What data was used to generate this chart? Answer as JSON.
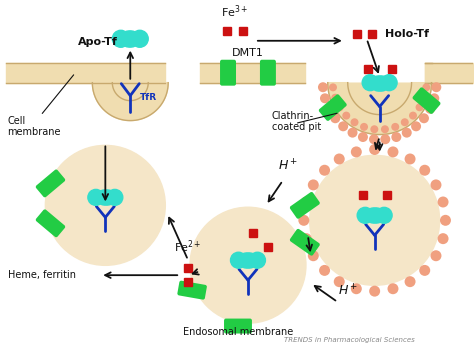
{
  "bg_color": "#ffffff",
  "membrane_color": "#f0ddb0",
  "membrane_stroke": "#c8a96e",
  "clathrin_color": "#f0a080",
  "endosome_fill": "#f5e6c8",
  "endosome_stroke": "#e8a070",
  "green_color": "#22cc44",
  "cyan_color": "#33ddcc",
  "blue_color": "#1133bb",
  "red_color": "#cc1111",
  "arrow_color": "#111111",
  "text_color": "#111111",
  "title_text": "TRENDS in Pharmacological Sciences",
  "labels": {
    "apo_tf": "Apo-Tf",
    "holo_tf": "Holo-Tf",
    "tfr": "TfR",
    "dmt1": "DMT1",
    "cell_membrane": "Cell\nmembrane",
    "clathrin": "Clathrin-\ncoated pit",
    "fe3": "Fe$^{3+}$",
    "fe2": "Fe$^{2+}$",
    "h_plus1": "H$^+$",
    "h_plus2": "H$^+$",
    "heme": "Heme, ferritin",
    "endosomal": "Endosomal membrane"
  }
}
